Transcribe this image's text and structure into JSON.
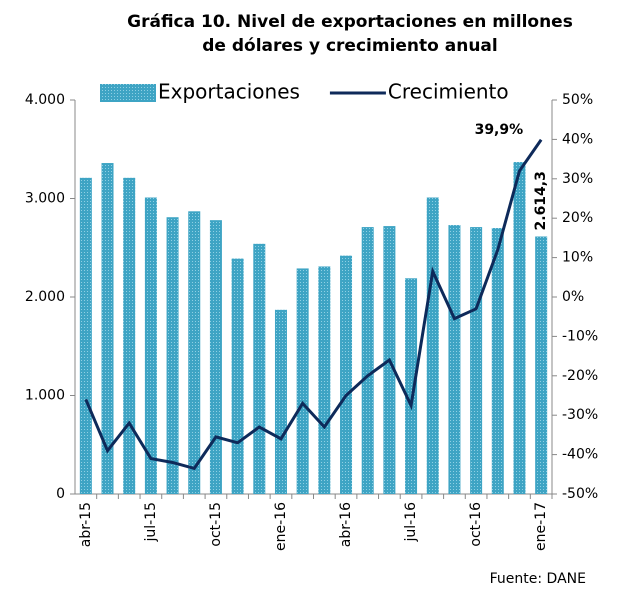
{
  "chart_data": {
    "type": "bar_line",
    "title": [
      "Gráfica  10. Nivel de exportaciones en millones",
      "de dólares y crecimiento anual"
    ],
    "source": "Fuente: DANE",
    "categories": [
      "abr-15",
      null,
      null,
      "jul-15",
      null,
      null,
      "oct-15",
      null,
      null,
      "ene-16",
      null,
      null,
      "abr-16",
      null,
      null,
      "jul-16",
      null,
      null,
      "oct-16",
      null,
      null,
      "ene-17"
    ],
    "series": [
      {
        "name": "Exportaciones",
        "color": "#3ea4c4",
        "type": "bar",
        "values": [
          3210,
          3360,
          3210,
          3010,
          2810,
          2870,
          2780,
          2390,
          2540,
          1870,
          2290,
          2310,
          2420,
          2710,
          2720,
          2190,
          3010,
          2730,
          2710,
          2700,
          3370,
          2614.3
        ],
        "value_labels": {
          "21": "2.614,3"
        }
      },
      {
        "name": "Crecimiento",
        "color": "#0e2a5a",
        "type": "line",
        "axis": "y2",
        "values": [
          -26,
          -39,
          -32,
          -41,
          -42,
          -43.5,
          -35.5,
          -37,
          -33,
          -36,
          -27,
          -33,
          -25,
          -20,
          -16,
          -27.5,
          6.5,
          -5.5,
          -3,
          12,
          32,
          39.9
        ],
        "value_labels": {
          "21": "39,9%"
        }
      }
    ],
    "ylim": [
      0,
      4000
    ],
    "yticks": [
      0,
      {
        "value": 1000,
        "label": "1.000"
      },
      {
        "value": 2000,
        "label": "2.000"
      },
      {
        "value": 3000,
        "label": "3.000"
      },
      {
        "value": 4000,
        "label": "4.000"
      }
    ],
    "y2lim": [
      -50,
      50
    ],
    "y2ticks": [
      {
        "value": -50,
        "label": "-50%"
      },
      {
        "value": -40,
        "label": "-40%"
      },
      {
        "value": -30,
        "label": "-30%"
      },
      {
        "value": -20,
        "label": "-20%"
      },
      {
        "value": -10,
        "label": "-10%"
      },
      {
        "value": 0,
        "label": "0%"
      },
      {
        "value": 10,
        "label": "10%"
      },
      {
        "value": 20,
        "label": "20%"
      },
      {
        "value": 30,
        "label": "30%"
      },
      {
        "value": 40,
        "label": "40%"
      },
      {
        "value": 50,
        "label": "50%"
      }
    ],
    "legend": "top"
  }
}
